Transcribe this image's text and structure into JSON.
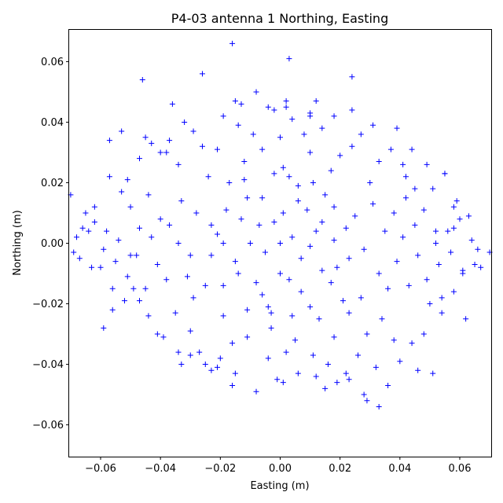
{
  "chart_data": {
    "type": "scatter",
    "title": "P4-03 antenna 1 Northing, Easting",
    "xlabel": "Easting (m)",
    "ylabel": "Northing (m)",
    "xlim": [
      -0.0705,
      0.0705
    ],
    "ylim": [
      -0.0705,
      0.0705
    ],
    "x_ticks": [
      -0.06,
      -0.04,
      -0.02,
      0.0,
      0.02,
      0.04,
      0.06
    ],
    "x_tick_labels": [
      "−0.06",
      "−0.04",
      "−0.02",
      "0.00",
      "0.02",
      "0.04",
      "0.06"
    ],
    "y_ticks": [
      -0.06,
      -0.04,
      -0.02,
      0.0,
      0.02,
      0.04,
      0.06
    ],
    "y_tick_labels": [
      "−0.06",
      "−0.04",
      "−0.02",
      "0.00",
      "0.02",
      "0.04",
      "0.06"
    ],
    "grid": false,
    "marker": "+",
    "color": "#0000ff",
    "series": [
      {
        "points": [
          [
            -0.002,
            0.007
          ],
          [
            0.003,
            -0.012
          ],
          [
            -0.011,
            0.015
          ],
          [
            0.012,
            0.004
          ],
          [
            -0.015,
            -0.006
          ],
          [
            0.006,
            0.019
          ],
          [
            -0.004,
            -0.021
          ],
          [
            0.019,
            -0.008
          ],
          [
            -0.021,
            0.003
          ],
          [
            0.009,
            0.011
          ],
          [
            -0.008,
            -0.013
          ],
          [
            0.015,
            0.016
          ],
          [
            -0.017,
            0.02
          ],
          [
            0.021,
            -0.019
          ],
          [
            -0.025,
            -0.014
          ],
          [
            0.001,
            0.025
          ],
          [
            -0.003,
            -0.028
          ],
          [
            0.025,
            0.009
          ],
          [
            -0.028,
            0.01
          ],
          [
            0.013,
            -0.025
          ],
          [
            -0.012,
            0.027
          ],
          [
            0.028,
            -0.002
          ],
          [
            -0.03,
            -0.004
          ],
          [
            0.005,
            -0.032
          ],
          [
            -0.006,
            0.031
          ],
          [
            0.017,
            0.024
          ],
          [
            -0.019,
            -0.024
          ],
          [
            0.023,
            -0.023
          ],
          [
            -0.024,
            0.022
          ],
          [
            0.031,
            0.013
          ],
          [
            -0.033,
            0.014
          ],
          [
            0.01,
            0.03
          ],
          [
            -0.011,
            -0.031
          ],
          [
            0.027,
            -0.018
          ],
          [
            -0.029,
            -0.018
          ],
          [
            0.033,
            -0.01
          ],
          [
            -0.034,
            0.0
          ],
          [
            0.0,
            0.035
          ],
          [
            0.002,
            -0.036
          ],
          [
            0.02,
            0.029
          ],
          [
            -0.021,
            0.031
          ],
          [
            0.018,
            -0.031
          ],
          [
            -0.016,
            -0.033
          ],
          [
            0.035,
            0.004
          ],
          [
            -0.037,
            0.006
          ],
          [
            0.03,
            0.02
          ],
          [
            -0.031,
            -0.011
          ],
          [
            0.036,
            -0.015
          ],
          [
            -0.038,
            -0.012
          ],
          [
            0.008,
            0.036
          ],
          [
            -0.009,
            0.036
          ],
          [
            0.011,
            -0.037
          ],
          [
            -0.004,
            -0.038
          ],
          [
            0.024,
            0.032
          ],
          [
            -0.026,
            0.032
          ],
          [
            0.029,
            -0.03
          ],
          [
            -0.03,
            -0.029
          ],
          [
            0.038,
            0.01
          ],
          [
            -0.04,
            0.008
          ],
          [
            0.039,
            -0.006
          ],
          [
            -0.041,
            -0.007
          ],
          [
            0.014,
            0.038
          ],
          [
            -0.014,
            0.039
          ],
          [
            0.016,
            -0.04
          ],
          [
            -0.02,
            -0.038
          ],
          [
            0.033,
            0.027
          ],
          [
            -0.034,
            0.026
          ],
          [
            0.034,
            -0.025
          ],
          [
            -0.035,
            -0.023
          ],
          [
            0.041,
            0.002
          ],
          [
            -0.043,
            0.002
          ],
          [
            0.004,
            0.041
          ],
          [
            0.006,
            -0.043
          ],
          [
            0.027,
            0.036
          ],
          [
            -0.029,
            0.037
          ],
          [
            0.026,
            -0.037
          ],
          [
            -0.027,
            -0.036
          ],
          [
            0.042,
            0.015
          ],
          [
            -0.044,
            0.016
          ],
          [
            0.043,
            -0.014
          ],
          [
            -0.045,
            -0.015
          ],
          [
            0.018,
            0.042
          ],
          [
            -0.019,
            0.042
          ],
          [
            0.022,
            -0.043
          ],
          [
            -0.023,
            -0.042
          ],
          [
            0.037,
            0.031
          ],
          [
            -0.038,
            0.03
          ],
          [
            0.038,
            -0.032
          ],
          [
            -0.039,
            -0.031
          ],
          [
            0.045,
            0.006
          ],
          [
            -0.047,
            0.005
          ],
          [
            0.046,
            -0.004
          ],
          [
            -0.048,
            -0.004
          ],
          [
            0.002,
            0.045
          ],
          [
            -0.002,
            0.044
          ],
          [
            0.001,
            -0.046
          ],
          [
            -0.001,
            -0.045
          ],
          [
            0.031,
            0.039
          ],
          [
            -0.032,
            0.04
          ],
          [
            0.032,
            -0.041
          ],
          [
            -0.033,
            -0.04
          ],
          [
            0.048,
            0.011
          ],
          [
            -0.05,
            0.012
          ],
          [
            0.049,
            -0.012
          ],
          [
            -0.051,
            -0.011
          ],
          [
            0.012,
            0.047
          ],
          [
            -0.013,
            0.046
          ],
          [
            0.015,
            -0.048
          ],
          [
            -0.016,
            -0.047
          ],
          [
            0.052,
            0.0
          ],
          [
            -0.054,
            0.001
          ],
          [
            0.053,
            -0.007
          ],
          [
            -0.055,
            -0.006
          ],
          [
            0.051,
            0.018
          ],
          [
            -0.053,
            0.017
          ],
          [
            0.05,
            -0.02
          ],
          [
            -0.052,
            -0.019
          ],
          [
            0.056,
            0.004
          ],
          [
            -0.058,
            0.004
          ],
          [
            0.057,
            -0.003
          ],
          [
            -0.059,
            -0.002
          ],
          [
            0.055,
            0.023
          ],
          [
            -0.057,
            0.022
          ],
          [
            0.054,
            -0.023
          ],
          [
            -0.056,
            -0.022
          ],
          [
            0.06,
            0.008
          ],
          [
            -0.062,
            0.007
          ],
          [
            0.061,
            -0.009
          ],
          [
            -0.063,
            -0.008
          ],
          [
            0.063,
            0.009
          ],
          [
            -0.065,
            0.01
          ],
          [
            0.065,
            -0.007
          ],
          [
            -0.067,
            -0.005
          ],
          [
            0.064,
            0.001
          ],
          [
            -0.068,
            0.002
          ],
          [
            0.066,
            -0.002
          ],
          [
            -0.069,
            -0.003
          ],
          [
            0.07,
            -0.003
          ],
          [
            -0.07,
            0.016
          ],
          [
            0.067,
            -0.008
          ],
          [
            -0.066,
            0.005
          ],
          [
            0.062,
            -0.025
          ],
          [
            -0.059,
            -0.028
          ],
          [
            0.046,
            -0.042
          ],
          [
            0.051,
            -0.043
          ],
          [
            0.033,
            -0.054
          ],
          [
            0.029,
            -0.052
          ],
          [
            0.036,
            -0.047
          ],
          [
            0.028,
            -0.05
          ],
          [
            -0.008,
            -0.049
          ],
          [
            -0.046,
            0.054
          ],
          [
            -0.026,
            0.056
          ],
          [
            -0.016,
            0.066
          ],
          [
            0.003,
            0.061
          ],
          [
            0.024,
            0.055
          ],
          [
            -0.036,
            0.046
          ],
          [
            -0.015,
            0.047
          ],
          [
            -0.008,
            0.05
          ],
          [
            0.039,
            0.038
          ],
          [
            0.024,
            0.044
          ],
          [
            0.01,
            0.042
          ],
          [
            0.049,
            0.026
          ],
          [
            0.044,
            0.031
          ],
          [
            0.055,
            0.023
          ],
          [
            0.058,
            0.012
          ],
          [
            0.059,
            0.014
          ],
          [
            -0.041,
            -0.03
          ],
          [
            -0.034,
            -0.036
          ],
          [
            -0.025,
            -0.04
          ],
          [
            -0.057,
            0.034
          ],
          [
            -0.053,
            0.037
          ],
          [
            -0.045,
            0.035
          ],
          [
            -0.051,
            0.021
          ],
          [
            -0.047,
            0.028
          ],
          [
            -0.04,
            0.03
          ],
          [
            -0.043,
            0.033
          ],
          [
            -0.037,
            0.034
          ],
          [
            0.002,
            0.047
          ],
          [
            -0.004,
            0.045
          ],
          [
            0.01,
            0.043
          ],
          [
            0.042,
            0.022
          ],
          [
            0.045,
            0.018
          ],
          [
            0.041,
            0.026
          ],
          [
            0.048,
            -0.03
          ],
          [
            0.044,
            -0.033
          ],
          [
            0.04,
            -0.039
          ],
          [
            0.019,
            -0.046
          ],
          [
            0.023,
            -0.045
          ],
          [
            0.012,
            -0.044
          ],
          [
            -0.015,
            -0.043
          ],
          [
            -0.021,
            -0.041
          ],
          [
            -0.03,
            -0.037
          ],
          [
            -0.044,
            -0.024
          ],
          [
            -0.047,
            -0.019
          ],
          [
            -0.049,
            -0.015
          ],
          [
            0.061,
            -0.01
          ],
          [
            0.058,
            -0.016
          ],
          [
            0.054,
            -0.018
          ],
          [
            0.052,
            0.004
          ],
          [
            0.058,
            0.005
          ],
          [
            -0.062,
            0.012
          ],
          [
            -0.06,
            -0.008
          ],
          [
            -0.056,
            -0.015
          ],
          [
            -0.05,
            -0.004
          ],
          [
            -0.064,
            0.004
          ],
          [
            0.0,
            0.0
          ],
          [
            0.004,
            0.002
          ],
          [
            -0.005,
            -0.003
          ],
          [
            0.007,
            -0.005
          ],
          [
            -0.007,
            0.006
          ],
          [
            0.01,
            -0.001
          ],
          [
            -0.01,
            0.0
          ],
          [
            0.001,
            0.01
          ],
          [
            0.0,
            -0.01
          ],
          [
            0.014,
            0.007
          ],
          [
            -0.013,
            0.008
          ],
          [
            0.014,
            -0.009
          ],
          [
            -0.014,
            -0.01
          ],
          [
            0.006,
            0.014
          ],
          [
            -0.006,
            0.015
          ],
          [
            0.007,
            -0.016
          ],
          [
            -0.006,
            -0.017
          ],
          [
            0.018,
            0.001
          ],
          [
            -0.019,
            0.0
          ],
          [
            0.018,
            0.012
          ],
          [
            -0.018,
            0.011
          ],
          [
            0.017,
            -0.013
          ],
          [
            -0.019,
            -0.014
          ],
          [
            0.011,
            0.02
          ],
          [
            -0.012,
            0.021
          ],
          [
            0.01,
            -0.021
          ],
          [
            -0.011,
            -0.022
          ],
          [
            0.022,
            0.005
          ],
          [
            -0.023,
            0.006
          ],
          [
            0.023,
            -0.005
          ],
          [
            -0.023,
            -0.004
          ],
          [
            0.003,
            0.022
          ],
          [
            -0.002,
            0.023
          ],
          [
            0.004,
            -0.024
          ],
          [
            -0.003,
            -0.023
          ]
        ]
      }
    ]
  }
}
